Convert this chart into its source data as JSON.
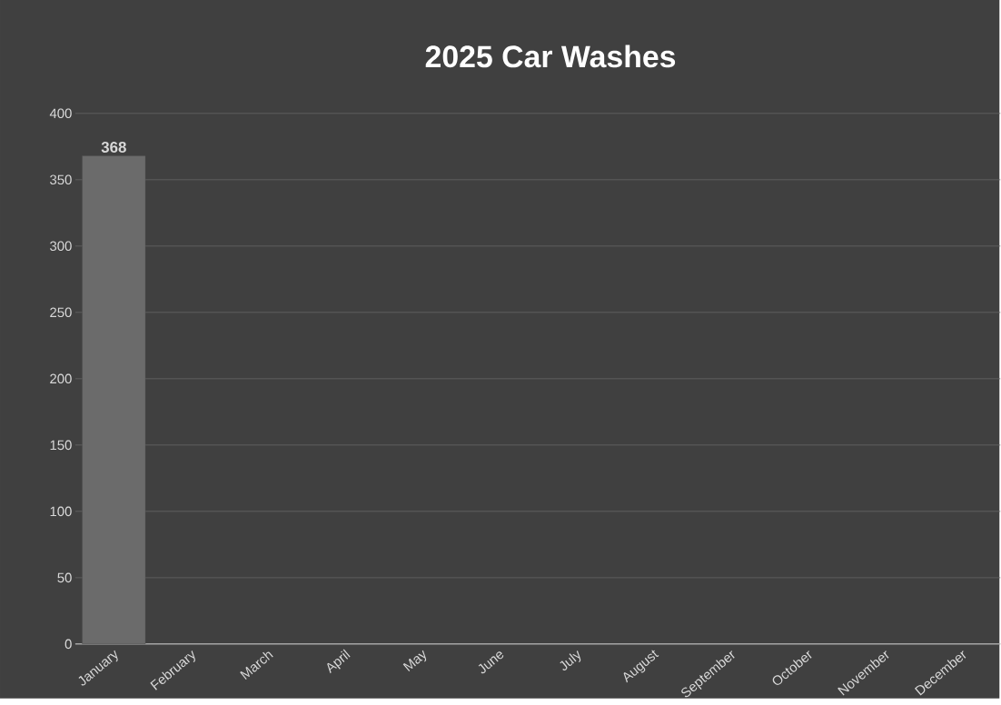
{
  "chart_data": {
    "type": "bar",
    "title": "2025 Car Washes",
    "categories": [
      "January",
      "February",
      "March",
      "April",
      "May",
      "June",
      "July",
      "August",
      "September",
      "October",
      "November",
      "December"
    ],
    "values": [
      368,
      null,
      null,
      null,
      null,
      null,
      null,
      null,
      null,
      null,
      null,
      null
    ],
    "color": "#6b6b6b",
    "ylim": [
      0,
      400
    ],
    "yticks": [
      0,
      50,
      100,
      150,
      200,
      250,
      300,
      350,
      400
    ],
    "grid": "y",
    "data_labels": true
  }
}
